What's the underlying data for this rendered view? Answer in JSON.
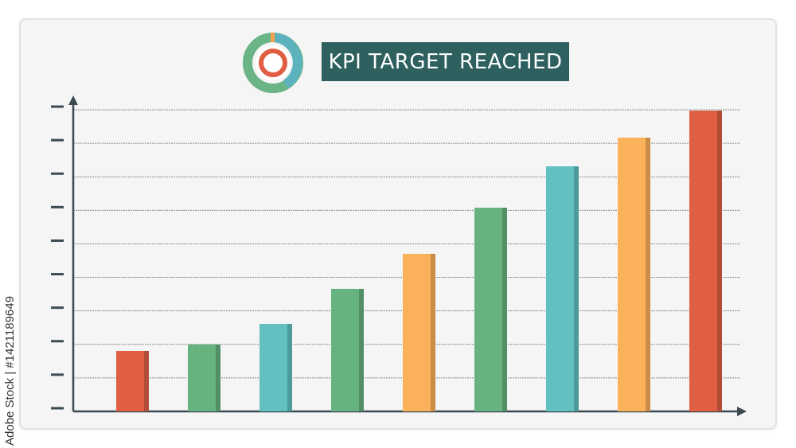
{
  "banner": {
    "title": "KPI  TARGET REACHED"
  },
  "badge": {
    "icon": "target-icon"
  },
  "chart_data": {
    "type": "bar",
    "categories": [
      "",
      "",
      "",
      "",
      "",
      "",
      "",
      "",
      ""
    ],
    "values": [
      19,
      21,
      27.5,
      38.5,
      49.5,
      64,
      77,
      86,
      94.5
    ],
    "colors": [
      "#e05f43",
      "#66b37f",
      "#62c0c0",
      "#66b37f",
      "#fbb05a",
      "#66b37f",
      "#62c0c0",
      "#fbb05a",
      "#e05f43"
    ],
    "ylim": [
      0,
      100
    ],
    "grid": true,
    "title": "",
    "xlabel": "",
    "ylabel": ""
  },
  "side_text": {
    "adobe": "Adobe Stock",
    "separator": "|",
    "id": "#1421189649"
  }
}
